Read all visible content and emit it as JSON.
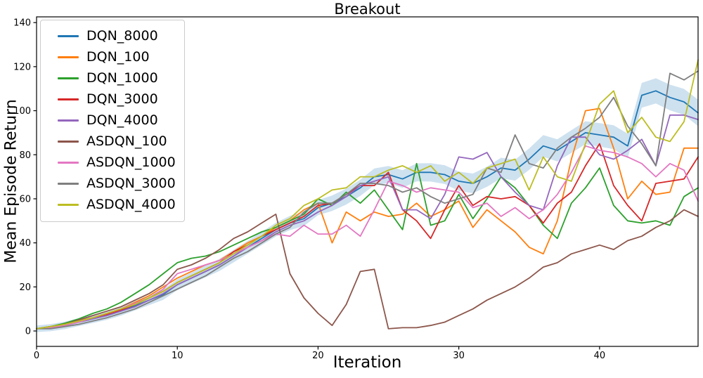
{
  "chart_data": {
    "type": "line",
    "title": "Breakout",
    "xlabel": "Iteration",
    "ylabel": "Mean Episode Return",
    "xlim": [
      0,
      47
    ],
    "ylim": [
      -7,
      142.6
    ],
    "x_ticks": [
      0,
      10,
      20,
      30,
      40
    ],
    "y_ticks": [
      0,
      20,
      40,
      60,
      80,
      100,
      120,
      140
    ],
    "grid": false,
    "legend_position": "upper left",
    "x": [
      0,
      1,
      2,
      3,
      4,
      5,
      6,
      7,
      8,
      9,
      10,
      11,
      12,
      13,
      14,
      15,
      16,
      17,
      18,
      19,
      20,
      21,
      22,
      23,
      24,
      25,
      26,
      27,
      28,
      29,
      30,
      31,
      32,
      33,
      34,
      35,
      36,
      37,
      38,
      39,
      40,
      41,
      42,
      43,
      44,
      45,
      46,
      47
    ],
    "series": [
      {
        "name": "DQN_8000",
        "color": "#1f77b4",
        "values": [
          1,
          1.5,
          2.5,
          4,
          5.5,
          7,
          9,
          11.5,
          14,
          16.5,
          21,
          24,
          27,
          30,
          34,
          38,
          42,
          46,
          49,
          51,
          56,
          58,
          61,
          65,
          70,
          71,
          69,
          72,
          72,
          71,
          68,
          67,
          70,
          74,
          73,
          78,
          84,
          82,
          86,
          90,
          89,
          88,
          84,
          107,
          109,
          106,
          104,
          99
        ]
      },
      {
        "name": "DQN_100",
        "color": "#ff7f0e",
        "values": [
          1,
          2,
          3,
          4.5,
          6,
          8,
          10,
          13,
          16,
          20,
          24,
          27,
          30,
          32,
          36,
          40,
          43,
          47,
          50,
          55,
          58,
          40,
          54,
          50,
          54,
          52,
          53,
          58,
          52,
          55,
          59,
          47,
          55,
          50,
          45,
          38,
          35,
          50,
          78,
          100,
          101,
          83,
          60,
          68,
          62,
          63,
          83,
          83
        ]
      },
      {
        "name": "DQN_1000",
        "color": "#2ca02c",
        "values": [
          1,
          2,
          3.5,
          5.5,
          8,
          10,
          13,
          17,
          21,
          26,
          31,
          33,
          34,
          36,
          39,
          42,
          45,
          47,
          50,
          53,
          60,
          57,
          63,
          58,
          64,
          55,
          46,
          76,
          48,
          50,
          62,
          51,
          60,
          70,
          65,
          57,
          48,
          42,
          58,
          65,
          74,
          57,
          50,
          49,
          50,
          48,
          61,
          65
        ]
      },
      {
        "name": "DQN_3000",
        "color": "#d62728",
        "values": [
          1,
          1.5,
          3,
          4.5,
          6,
          7.5,
          9.5,
          12,
          15,
          18,
          22,
          25,
          28,
          31,
          36,
          39,
          43,
          46,
          49,
          52,
          57,
          58,
          62,
          66,
          66,
          72,
          55,
          50,
          42,
          55,
          66,
          57,
          61,
          60,
          61,
          57,
          49,
          58,
          63,
          75,
          85,
          66,
          57,
          50,
          67,
          68,
          69,
          79
        ]
      },
      {
        "name": "DQN_4000",
        "color": "#9467bd",
        "values": [
          1,
          1.5,
          2.5,
          4,
          5.5,
          7,
          9,
          11,
          14,
          17,
          21,
          24,
          27,
          30,
          34,
          38,
          41,
          45,
          48,
          50,
          54,
          57,
          61,
          66,
          68,
          70,
          55,
          55,
          51,
          62,
          79,
          78,
          81,
          70,
          63,
          57,
          55,
          75,
          88,
          88,
          80,
          78,
          82,
          87,
          75,
          98,
          98,
          96
        ]
      },
      {
        "name": "ASDQN_100",
        "color": "#8c564b",
        "values": [
          1,
          2,
          3,
          5,
          7,
          9,
          11,
          14,
          17,
          21,
          28,
          30,
          33,
          37,
          42,
          45,
          49,
          53,
          26,
          15,
          8,
          2.5,
          12,
          27,
          28,
          1,
          1.5,
          1.5,
          2.5,
          4,
          7,
          10,
          14,
          17,
          20,
          24,
          29,
          31,
          35,
          37,
          39,
          37,
          41,
          43,
          47,
          50,
          55,
          52
        ]
      },
      {
        "name": "ASDQN_1000",
        "color": "#e377c2",
        "values": [
          1,
          1.5,
          2.5,
          4,
          6,
          8,
          10,
          12.5,
          15,
          19,
          26,
          28,
          30,
          32,
          35,
          38,
          41,
          44,
          43,
          48,
          44,
          44,
          48,
          43,
          55,
          68,
          66,
          63,
          65,
          64,
          63,
          56,
          58,
          52,
          56,
          51,
          55,
          62,
          72,
          84,
          82,
          81,
          79,
          76,
          70,
          76,
          73,
          59
        ]
      },
      {
        "name": "ASDQN_3000",
        "color": "#7f7f7f",
        "values": [
          1,
          1,
          2,
          3,
          4.5,
          6,
          8,
          10,
          13,
          16,
          19,
          22,
          25,
          29,
          33,
          36,
          40,
          44,
          47,
          54,
          58,
          58,
          62,
          67,
          67,
          66,
          63,
          65,
          61,
          58,
          60,
          62,
          74,
          72,
          89,
          76,
          74,
          83,
          88,
          92,
          97,
          106,
          93,
          85,
          75,
          117,
          114,
          118
        ]
      },
      {
        "name": "ASDQN_4000",
        "color": "#bcbd22",
        "values": [
          1,
          2,
          3,
          4.5,
          6,
          8,
          10,
          12,
          15,
          18,
          22,
          25,
          28,
          31,
          35,
          39,
          43,
          48,
          51,
          57,
          60,
          64,
          65,
          70,
          70,
          73,
          75,
          72,
          75,
          68,
          72,
          67,
          74,
          76,
          78,
          64,
          79,
          70,
          68,
          85,
          103,
          109,
          90,
          97,
          88,
          86,
          95,
          123
        ]
      }
    ],
    "confidence_band": {
      "series": "DQN_8000",
      "color": "#1f77b4",
      "opacity": 0.22,
      "half_width_start": 1.5,
      "half_width_end": 6
    }
  }
}
